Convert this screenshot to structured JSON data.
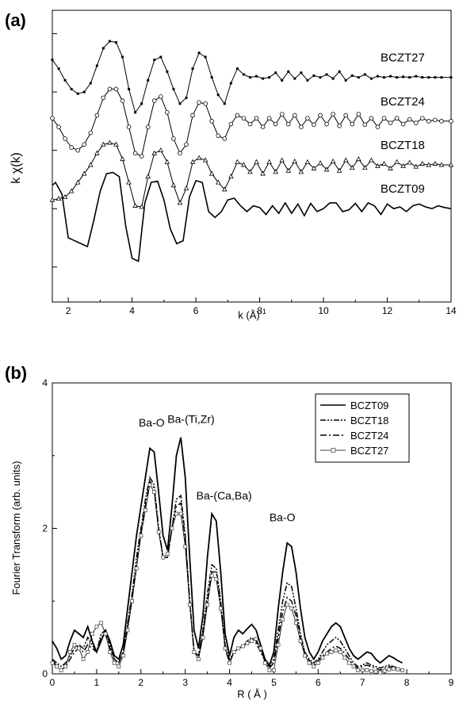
{
  "panel_a": {
    "label": "(a)"
  },
  "panel_b": {
    "label": "(b)"
  },
  "chart_data": [
    {
      "type": "line",
      "xlabel_main": "k (Å)",
      "xlabel_sup": "-1",
      "ylabel": "k χ(k)",
      "xlim": [
        1.5,
        14
      ],
      "xticks": [
        2,
        4,
        6,
        8,
        10,
        12,
        14
      ],
      "grid": false,
      "y_offsets": [
        0,
        0.75,
        1.5,
        2.25
      ],
      "series": [
        {
          "name": "BCZT09",
          "marker": "none",
          "style": "solid",
          "x": [
            1.5,
            1.6,
            1.8,
            2.0,
            2.2,
            2.4,
            2.6,
            2.8,
            3.0,
            3.2,
            3.4,
            3.6,
            3.8,
            4.0,
            4.2,
            4.4,
            4.6,
            4.8,
            5.0,
            5.2,
            5.4,
            5.6,
            5.8,
            6.0,
            6.2,
            6.4,
            6.6,
            6.8,
            7.0,
            7.2,
            7.4,
            7.6,
            7.8,
            8.0,
            8.2,
            8.4,
            8.6,
            8.8,
            9.0,
            9.2,
            9.4,
            9.6,
            9.8,
            10.0,
            10.2,
            10.4,
            10.6,
            10.8,
            11.0,
            11.2,
            11.4,
            11.6,
            11.8,
            12.0,
            12.2,
            12.4,
            12.6,
            12.8,
            13.0,
            13.2,
            13.4,
            13.6,
            13.8,
            14.0
          ],
          "y": [
            0.4,
            0.45,
            0.25,
            -0.5,
            -0.55,
            -0.6,
            -0.65,
            -0.2,
            0.3,
            0.6,
            0.62,
            0.55,
            -0.3,
            -0.85,
            -0.9,
            0.1,
            0.45,
            0.47,
            0.15,
            -0.35,
            -0.6,
            -0.55,
            0.2,
            0.48,
            0.45,
            -0.05,
            -0.15,
            -0.05,
            0.15,
            0.18,
            0.05,
            -0.05,
            0.05,
            0.02,
            -0.1,
            0.05,
            -0.08,
            0.1,
            -0.08,
            0.08,
            -0.12,
            0.09,
            -0.05,
            0.0,
            0.1,
            0.1,
            -0.05,
            -0.02,
            0.09,
            -0.05,
            0.1,
            0.05,
            -0.1,
            0.08,
            0.0,
            0.03,
            -0.05,
            0.05,
            0.08,
            0.03,
            0.0,
            0.05,
            0.02,
            0.0
          ]
        },
        {
          "name": "BCZT18",
          "marker": "triangle",
          "style": "solid",
          "x": [
            1.5,
            1.7,
            1.9,
            2.1,
            2.3,
            2.5,
            2.7,
            2.9,
            3.1,
            3.3,
            3.5,
            3.7,
            3.9,
            4.1,
            4.3,
            4.5,
            4.7,
            4.9,
            5.1,
            5.3,
            5.5,
            5.7,
            5.9,
            6.1,
            6.3,
            6.5,
            6.7,
            6.9,
            7.1,
            7.3,
            7.5,
            7.7,
            7.9,
            8.1,
            8.3,
            8.5,
            8.7,
            8.9,
            9.1,
            9.3,
            9.5,
            9.7,
            9.9,
            10.1,
            10.3,
            10.5,
            10.7,
            10.9,
            11.1,
            11.3,
            11.5,
            11.7,
            11.9,
            12.1,
            12.3,
            12.5,
            12.7,
            12.9,
            13.1,
            13.3,
            13.5,
            13.7,
            14.0
          ],
          "y": [
            -0.6,
            -0.58,
            -0.55,
            -0.45,
            -0.3,
            -0.15,
            0.0,
            0.2,
            0.35,
            0.38,
            0.35,
            0.1,
            -0.3,
            -0.7,
            -0.72,
            -0.2,
            0.2,
            0.25,
            0.05,
            -0.35,
            -0.65,
            -0.4,
            0.05,
            0.12,
            0.08,
            -0.15,
            -0.3,
            -0.42,
            -0.2,
            0.05,
            0.0,
            -0.12,
            0.05,
            -0.15,
            0.05,
            -0.12,
            0.08,
            -0.1,
            0.06,
            -0.12,
            0.05,
            -0.06,
            0.03,
            -0.08,
            0.06,
            -0.1,
            0.08,
            -0.05,
            0.1,
            -0.05,
            0.08,
            -0.02,
            0.02,
            -0.06,
            0.05,
            -0.02,
            0.04,
            -0.03,
            0.02,
            0.0,
            0.02,
            0.0,
            0.0
          ]
        },
        {
          "name": "BCZT24",
          "marker": "circle",
          "style": "solid",
          "x": [
            1.5,
            1.7,
            1.9,
            2.1,
            2.3,
            2.5,
            2.7,
            2.9,
            3.1,
            3.3,
            3.5,
            3.7,
            3.9,
            4.1,
            4.3,
            4.5,
            4.7,
            4.9,
            5.1,
            5.3,
            5.5,
            5.7,
            5.9,
            6.1,
            6.3,
            6.5,
            6.7,
            6.9,
            7.1,
            7.3,
            7.5,
            7.7,
            7.9,
            8.1,
            8.3,
            8.5,
            8.7,
            8.9,
            9.1,
            9.3,
            9.5,
            9.7,
            9.9,
            10.1,
            10.3,
            10.5,
            10.7,
            10.9,
            11.1,
            11.3,
            11.5,
            11.7,
            11.9,
            12.1,
            12.3,
            12.5,
            12.7,
            12.9,
            13.1,
            13.3,
            13.5,
            13.7,
            14.0
          ],
          "y": [
            0.05,
            -0.1,
            -0.3,
            -0.45,
            -0.5,
            -0.4,
            -0.2,
            0.1,
            0.4,
            0.55,
            0.55,
            0.35,
            -0.1,
            -0.55,
            -0.6,
            -0.1,
            0.35,
            0.42,
            0.15,
            -0.3,
            -0.55,
            -0.4,
            0.1,
            0.32,
            0.3,
            0.0,
            -0.25,
            -0.3,
            -0.05,
            0.1,
            0.05,
            -0.05,
            0.05,
            -0.1,
            0.05,
            -0.05,
            0.12,
            -0.05,
            0.1,
            -0.1,
            0.05,
            -0.06,
            0.1,
            -0.05,
            0.12,
            -0.08,
            0.1,
            -0.05,
            0.12,
            -0.06,
            0.05,
            -0.1,
            0.05,
            -0.03,
            0.05,
            -0.05,
            0.03,
            -0.03,
            0.05,
            0.0,
            0.02,
            0.0,
            0.0
          ]
        },
        {
          "name": "BCZT27",
          "marker": "square",
          "style": "solid",
          "x": [
            1.5,
            1.7,
            1.9,
            2.1,
            2.3,
            2.5,
            2.7,
            2.9,
            3.1,
            3.3,
            3.5,
            3.7,
            3.9,
            4.1,
            4.3,
            4.5,
            4.7,
            4.9,
            5.1,
            5.3,
            5.5,
            5.7,
            5.9,
            6.1,
            6.3,
            6.5,
            6.7,
            6.9,
            7.1,
            7.3,
            7.5,
            7.7,
            7.9,
            8.1,
            8.3,
            8.5,
            8.7,
            8.9,
            9.1,
            9.3,
            9.5,
            9.7,
            9.9,
            10.1,
            10.3,
            10.5,
            10.7,
            10.9,
            11.1,
            11.3,
            11.5,
            11.7,
            11.9,
            12.1,
            12.3,
            12.5,
            12.7,
            12.9,
            13.1,
            13.3,
            13.5,
            13.7,
            14.0
          ],
          "y": [
            0.3,
            0.15,
            -0.05,
            -0.2,
            -0.28,
            -0.25,
            -0.1,
            0.2,
            0.5,
            0.62,
            0.6,
            0.35,
            -0.2,
            -0.6,
            -0.45,
            -0.05,
            0.3,
            0.35,
            0.1,
            -0.2,
            -0.45,
            -0.35,
            0.15,
            0.42,
            0.35,
            0.0,
            -0.3,
            -0.45,
            -0.1,
            0.15,
            0.05,
            0.0,
            0.02,
            -0.02,
            0.0,
            0.08,
            -0.05,
            0.1,
            -0.02,
            0.08,
            -0.05,
            0.03,
            0.0,
            0.05,
            -0.02,
            0.1,
            -0.05,
            0.03,
            0.0,
            0.05,
            -0.02,
            0.02,
            0.0,
            0.02,
            0.0,
            0.01,
            0.0,
            0.02,
            0.0,
            0.0,
            0.0,
            0.0,
            0.0
          ]
        }
      ]
    },
    {
      "type": "line",
      "xlabel": "R ( Å )",
      "ylabel": "Fourier Transform (arb. units)",
      "xlim": [
        0,
        9
      ],
      "ylim": [
        0,
        4
      ],
      "xticks": [
        0,
        1,
        2,
        3,
        4,
        5,
        6,
        7,
        8,
        9
      ],
      "yticks": [
        0,
        2,
        4
      ],
      "legend_position": "top-right",
      "grid": false,
      "annotations": [
        {
          "text": "Ba-O",
          "x": 1.95,
          "y": 3.4
        },
        {
          "text": "Ba-(Ti,Zr)",
          "x": 2.6,
          "y": 3.45
        },
        {
          "text": "Ba-(Ca,Ba)",
          "x": 3.25,
          "y": 2.4
        },
        {
          "text": "Ba-O",
          "x": 4.9,
          "y": 2.1
        }
      ],
      "x": [
        0.0,
        0.1,
        0.2,
        0.3,
        0.4,
        0.5,
        0.6,
        0.7,
        0.8,
        0.9,
        1.0,
        1.1,
        1.2,
        1.3,
        1.4,
        1.5,
        1.6,
        1.7,
        1.8,
        1.9,
        2.0,
        2.1,
        2.2,
        2.3,
        2.4,
        2.5,
        2.6,
        2.7,
        2.8,
        2.9,
        3.0,
        3.1,
        3.2,
        3.3,
        3.4,
        3.5,
        3.6,
        3.7,
        3.8,
        3.9,
        4.0,
        4.1,
        4.2,
        4.3,
        4.4,
        4.5,
        4.6,
        4.7,
        4.8,
        4.9,
        5.0,
        5.1,
        5.2,
        5.3,
        5.4,
        5.5,
        5.6,
        5.7,
        5.8,
        5.9,
        6.0,
        6.1,
        6.2,
        6.3,
        6.4,
        6.5,
        6.6,
        6.7,
        6.8,
        6.9,
        7.0,
        7.1,
        7.2,
        7.3,
        7.4,
        7.5,
        7.6,
        7.7,
        7.8,
        7.9
      ],
      "series": [
        {
          "name": "BCZT09",
          "style": "solid",
          "values": [
            0.45,
            0.35,
            0.2,
            0.25,
            0.45,
            0.6,
            0.55,
            0.5,
            0.65,
            0.45,
            0.3,
            0.45,
            0.6,
            0.45,
            0.25,
            0.2,
            0.4,
            0.9,
            1.4,
            1.9,
            2.3,
            2.7,
            3.1,
            3.05,
            2.5,
            1.9,
            1.7,
            2.3,
            3.0,
            3.25,
            2.7,
            1.6,
            0.6,
            0.35,
            0.8,
            1.6,
            2.2,
            2.1,
            1.4,
            0.55,
            0.25,
            0.5,
            0.6,
            0.55,
            0.62,
            0.68,
            0.6,
            0.4,
            0.2,
            0.12,
            0.3,
            0.9,
            1.4,
            1.8,
            1.75,
            1.4,
            0.9,
            0.5,
            0.3,
            0.2,
            0.3,
            0.45,
            0.55,
            0.65,
            0.7,
            0.65,
            0.5,
            0.35,
            0.25,
            0.2,
            0.25,
            0.3,
            0.28,
            0.2,
            0.15,
            0.2,
            0.25,
            0.22,
            0.18,
            0.15
          ]
        },
        {
          "name": "BCZT18",
          "style": "dash-dot-dot",
          "values": [
            0.2,
            0.15,
            0.1,
            0.15,
            0.25,
            0.35,
            0.4,
            0.35,
            0.5,
            0.4,
            0.3,
            0.55,
            0.6,
            0.4,
            0.2,
            0.15,
            0.3,
            0.7,
            1.1,
            1.6,
            2.0,
            2.4,
            2.7,
            2.6,
            2.0,
            1.6,
            1.6,
            2.0,
            2.4,
            2.45,
            1.9,
            1.0,
            0.3,
            0.25,
            0.6,
            1.1,
            1.5,
            1.45,
            1.0,
            0.4,
            0.2,
            0.3,
            0.35,
            0.38,
            0.45,
            0.5,
            0.45,
            0.35,
            0.2,
            0.1,
            0.2,
            0.6,
            1.0,
            1.25,
            1.2,
            0.9,
            0.55,
            0.3,
            0.2,
            0.15,
            0.2,
            0.3,
            0.4,
            0.45,
            0.5,
            0.45,
            0.35,
            0.25,
            0.15,
            0.1,
            0.12,
            0.15,
            0.12,
            0.1,
            0.08,
            0.1,
            0.12,
            0.1,
            0.08,
            0.06
          ]
        },
        {
          "name": "BCZT24",
          "style": "dash-dot",
          "values": [
            0.2,
            0.1,
            0.05,
            0.1,
            0.2,
            0.3,
            0.35,
            0.3,
            0.4,
            0.35,
            0.3,
            0.5,
            0.55,
            0.35,
            0.2,
            0.15,
            0.3,
            0.65,
            1.05,
            1.5,
            1.95,
            2.3,
            2.65,
            2.55,
            2.0,
            1.6,
            1.6,
            2.0,
            2.3,
            2.35,
            1.85,
            1.0,
            0.3,
            0.25,
            0.55,
            1.0,
            1.4,
            1.4,
            0.95,
            0.35,
            0.15,
            0.3,
            0.35,
            0.38,
            0.42,
            0.45,
            0.42,
            0.3,
            0.18,
            0.08,
            0.15,
            0.5,
            0.85,
            1.05,
            1.0,
            0.8,
            0.5,
            0.28,
            0.18,
            0.12,
            0.18,
            0.25,
            0.3,
            0.35,
            0.38,
            0.35,
            0.28,
            0.2,
            0.12,
            0.08,
            0.1,
            0.12,
            0.1,
            0.08,
            0.05,
            0.08,
            0.1,
            0.08,
            0.06,
            0.05
          ]
        },
        {
          "name": "BCZT27",
          "style": "solid-square-markers",
          "values": [
            0.15,
            0.1,
            0.05,
            0.1,
            0.3,
            0.4,
            0.35,
            0.2,
            0.3,
            0.55,
            0.65,
            0.7,
            0.55,
            0.3,
            0.15,
            0.1,
            0.25,
            0.6,
            1.0,
            1.45,
            1.9,
            2.25,
            2.6,
            2.5,
            1.95,
            1.6,
            1.65,
            2.0,
            2.2,
            2.2,
            1.75,
            0.95,
            0.3,
            0.2,
            0.5,
            0.95,
            1.35,
            1.3,
            0.9,
            0.35,
            0.15,
            0.3,
            0.35,
            0.38,
            0.42,
            0.45,
            0.48,
            0.35,
            0.15,
            0.05,
            0.05,
            0.4,
            0.75,
            0.95,
            0.9,
            0.7,
            0.45,
            0.25,
            0.15,
            0.1,
            0.15,
            0.22,
            0.28,
            0.3,
            0.32,
            0.3,
            0.22,
            0.15,
            0.1,
            0.05,
            0.05,
            0.05,
            0.04,
            0.03,
            0.02,
            0.04,
            0.06,
            0.07,
            0.06,
            0.05
          ]
        }
      ]
    }
  ]
}
